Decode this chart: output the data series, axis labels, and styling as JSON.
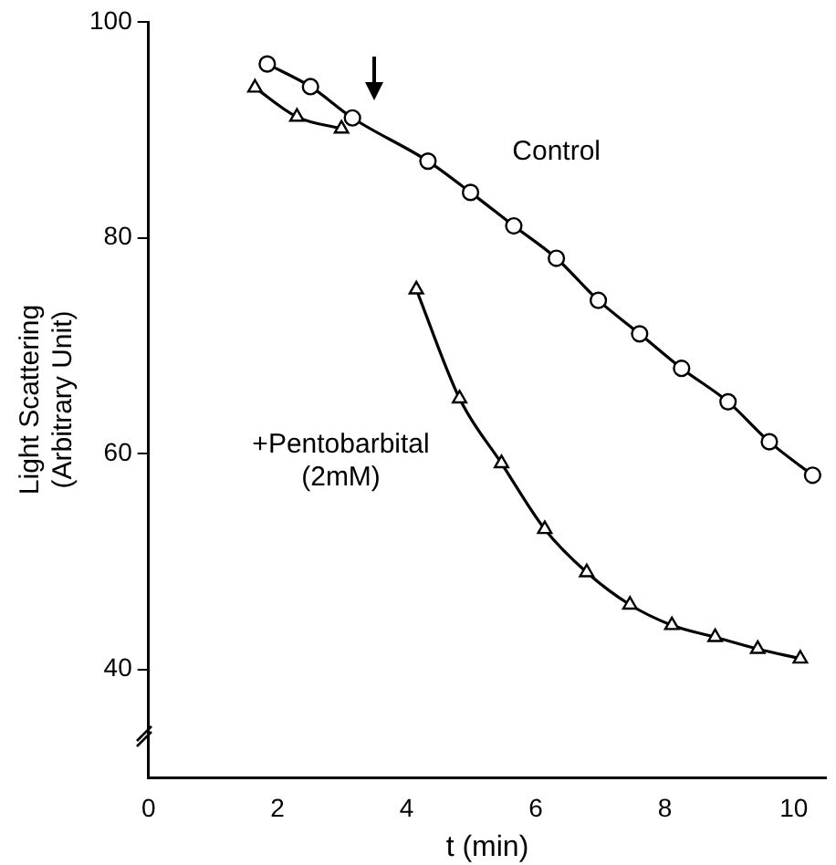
{
  "chart_data": {
    "type": "line",
    "xlabel": "t (min)",
    "ylabel": "Light Scattering\n(Arbitrary Unit)",
    "xlim": [
      0,
      10.5
    ],
    "xticks": [
      0,
      2,
      4,
      6,
      8,
      10
    ],
    "ylim": [
      30,
      100
    ],
    "yticks": [
      40,
      60,
      80,
      100
    ],
    "grid": false,
    "legend": false,
    "line_style": "solid",
    "series": [
      {
        "name": "Control",
        "color": "#000000",
        "marker": "circle",
        "x": [
          1.84,
          2.51,
          3.16,
          4.33,
          4.99,
          5.66,
          6.32,
          6.97,
          7.61,
          8.26,
          8.98,
          9.62,
          10.29
        ],
        "values": [
          96.1,
          94.0,
          91.1,
          87.1,
          84.2,
          81.1,
          78.1,
          74.2,
          71.1,
          67.9,
          64.8,
          61.1,
          58.0
        ]
      },
      {
        "name": "+Pentobarbital\n(2mM)",
        "color": "#000000",
        "marker": "triangle",
        "x": [
          1.65,
          2.3,
          2.99,
          3.5,
          4.15,
          4.82,
          5.47,
          6.14,
          6.79,
          7.46,
          8.11,
          8.78,
          9.44,
          10.1
        ],
        "values": [
          93.9,
          91.2,
          90.1,
          null,
          75.2,
          65.1,
          59.1,
          53.0,
          49.0,
          46.0,
          44.1,
          43.0,
          41.9,
          41.0
        ]
      }
    ]
  }
}
